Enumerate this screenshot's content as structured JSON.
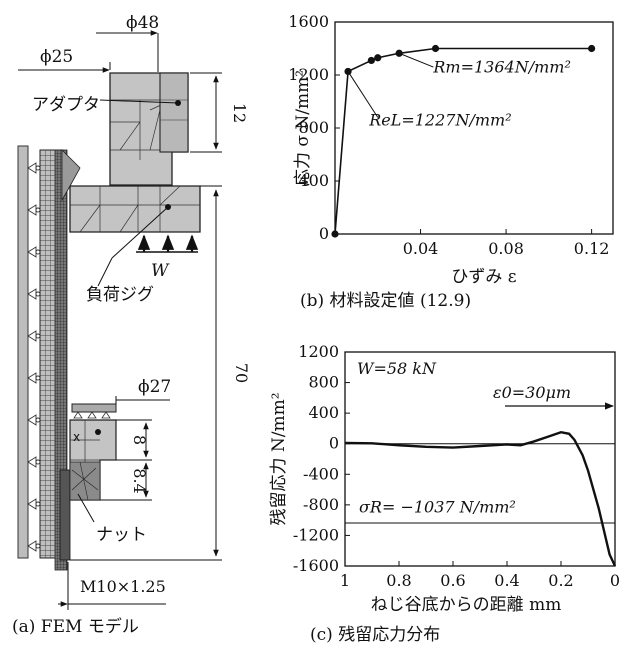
{
  "fem": {
    "dim_d48": "ϕ48",
    "dim_d25": "ϕ25",
    "adapter_label": "アダプタ",
    "dim_12": "12",
    "load_label": "W",
    "jig_label": "負荷ジグ",
    "dim_d27": "ϕ27",
    "dim_70": "70",
    "x_label": "x",
    "dim_8": "8",
    "dim_8_4": "8.4",
    "nut_label": "ナット",
    "thread_label": "M10×1.25",
    "caption": "(a)   FEM モデル"
  },
  "chart_data": [
    {
      "type": "line",
      "ylabel": "応力  σ  N/mm²",
      "xlabel": "ひずみ  ε",
      "xlim": [
        0,
        0.13
      ],
      "ylim": [
        0,
        1600
      ],
      "x_ticks": [
        {
          "value": 0.04,
          "label": "0.04"
        },
        {
          "value": 0.08,
          "label": "0.08"
        },
        {
          "value": 0.12,
          "label": "0.12"
        }
      ],
      "y_ticks": [
        {
          "value": 0,
          "label": "0"
        },
        {
          "value": 400,
          "label": "400"
        },
        {
          "value": 800,
          "label": "800"
        },
        {
          "value": 1200,
          "label": "1200"
        },
        {
          "value": 1600,
          "label": "1600"
        }
      ],
      "series": [
        {
          "x": [
            0.0,
            0.0061,
            0.017,
            0.02,
            0.03,
            0.047,
            0.12
          ],
          "y": [
            0,
            1227,
            1310,
            1330,
            1364,
            1400,
            1400
          ]
        }
      ],
      "annotation_rm": "Rm=1364N/mm²",
      "annotation_rel": "ReL=1227N/mm²",
      "caption": "(b)   材料設定値 (12.9)"
    },
    {
      "type": "line",
      "ylabel": "残留応力 N/mm²",
      "xlabel": "ねじ谷底からの距離 mm",
      "x_reversed": true,
      "xlim": [
        1,
        0
      ],
      "ylim": [
        -1600,
        1200
      ],
      "x_ticks": [
        {
          "value": 1,
          "label": "1"
        },
        {
          "value": 0.8,
          "label": "0.8"
        },
        {
          "value": 0.6,
          "label": "0.6"
        },
        {
          "value": 0.4,
          "label": "0.4"
        },
        {
          "value": 0.2,
          "label": "0.2"
        },
        {
          "value": 0,
          "label": "0"
        }
      ],
      "y_ticks": [
        {
          "value": 1200,
          "label": "1200"
        },
        {
          "value": 800,
          "label": "800"
        },
        {
          "value": 400,
          "label": "400"
        },
        {
          "value": 0,
          "label": "0"
        },
        {
          "value": -400,
          "label": "-400"
        },
        {
          "value": -800,
          "label": "-800"
        },
        {
          "value": -1200,
          "label": "-1200"
        },
        {
          "value": -1600,
          "label": "-1600"
        }
      ],
      "series": [
        {
          "x": [
            1.0,
            0.9,
            0.8,
            0.7,
            0.6,
            0.5,
            0.4,
            0.35,
            0.3,
            0.25,
            0.2,
            0.17,
            0.15,
            0.12,
            0.1,
            0.08,
            0.06,
            0.04,
            0.02,
            0.0
          ],
          "y": [
            10,
            5,
            -20,
            -40,
            -50,
            -30,
            -10,
            -20,
            30,
            90,
            150,
            130,
            50,
            -150,
            -350,
            -600,
            -850,
            -1150,
            -1450,
            -1600
          ]
        }
      ],
      "ref_line": -1037,
      "annotation_w": "W=58 kN",
      "annotation_eps": "ε0=30μm",
      "annotation_sigma": "σR= −1037 N/mm²",
      "caption": "(c)   残留応力分布"
    }
  ]
}
